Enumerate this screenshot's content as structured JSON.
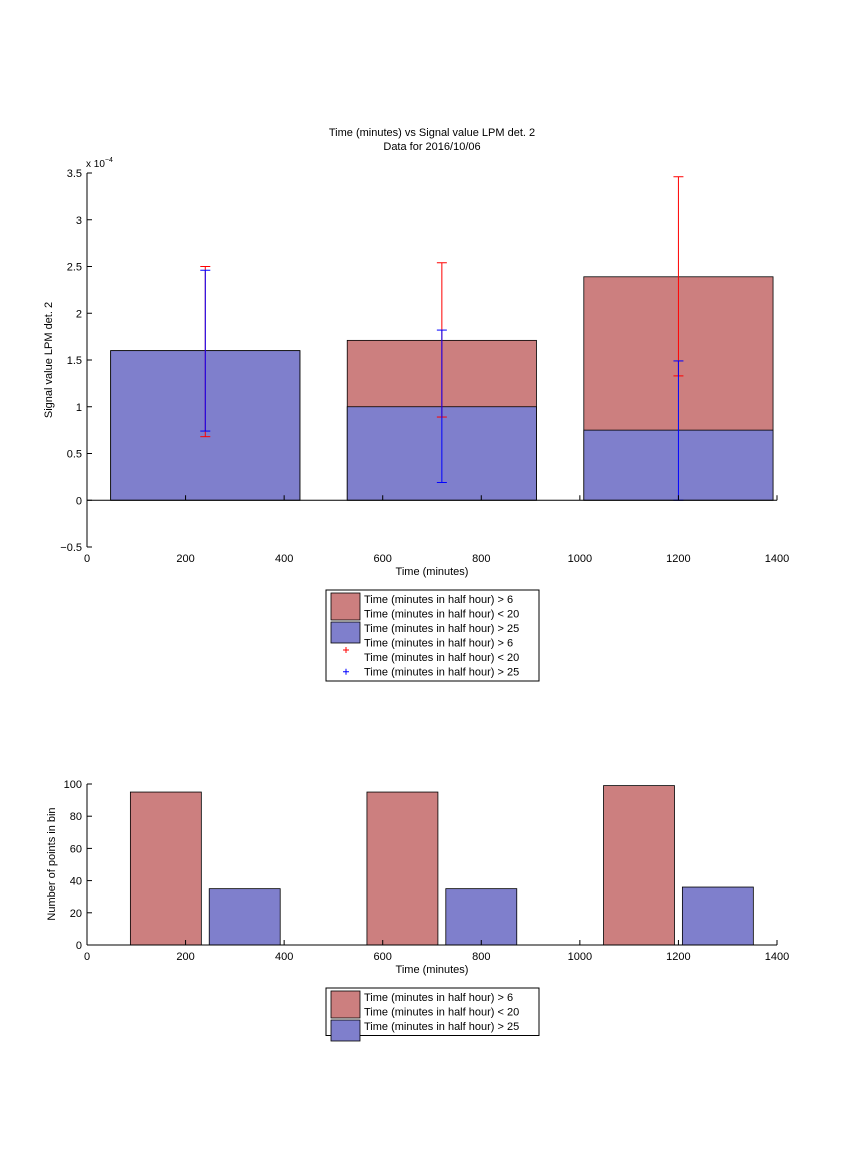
{
  "colors": {
    "red_bar": "#cc7f7f",
    "blue_bar": "#7f7fcc",
    "red_err": "#ff0000",
    "blue_err": "#0000ff",
    "axis": "#000000"
  },
  "chart_data": [
    {
      "type": "bar",
      "title": "Time (minutes) vs Signal value LPM det. 2",
      "subtitle": "Data for 2016/10/06",
      "xlabel": "Time (minutes)",
      "ylabel": "Signal value LPM det. 2",
      "y_exponent_label": "x 10",
      "y_exponent_power": "−4",
      "xlim": [
        0,
        1400
      ],
      "ylim": [
        -0.5,
        3.5
      ],
      "y_scale_factor": 0.0001,
      "xticks": [
        0,
        200,
        400,
        600,
        800,
        1000,
        1200,
        1400
      ],
      "yticks": [
        -0.5,
        0,
        0.5,
        1,
        1.5,
        2,
        2.5,
        3,
        3.5
      ],
      "ytick_labels": [
        "−0.5",
        "0",
        "0.5",
        "1",
        "1.5",
        "2",
        "2.5",
        "3",
        "3.5"
      ],
      "grid": false,
      "legend_position": "below",
      "categories": [
        240,
        720,
        1200
      ],
      "bar_width": 384,
      "series": [
        {
          "name": "Time (minutes in half hour) > 6 Time (minutes in half hour) < 20",
          "color": "#cc7f7f",
          "values": [
            1.6,
            1.71,
            2.39
          ]
        },
        {
          "name": "Time (minutes in half hour) > 25",
          "color": "#7f7fcc",
          "values": [
            1.6,
            1.0,
            0.75
          ]
        }
      ],
      "error_bars": [
        {
          "name": "Time (minutes in half hour) > 6 Time (minutes in half hour) < 20",
          "color": "#ff0000",
          "x": [
            240,
            720,
            1200
          ],
          "lower": [
            0.68,
            0.89,
            1.33
          ],
          "upper": [
            2.5,
            2.54,
            3.46
          ]
        },
        {
          "name": "Time (minutes in half hour) > 25",
          "color": "#0000ff",
          "x": [
            240,
            720,
            1200
          ],
          "lower": [
            0.74,
            0.19,
            0.0
          ],
          "upper": [
            2.46,
            1.82,
            1.49
          ]
        }
      ],
      "legend": [
        {
          "kind": "patch",
          "color": "#cc7f7f",
          "line1": "Time (minutes in half hour) > 6",
          "line2": "Time (minutes in half hour) < 20"
        },
        {
          "kind": "patch",
          "color": "#7f7fcc",
          "line1": "Time (minutes in half hour) > 25"
        },
        {
          "kind": "marker",
          "color": "#ff0000",
          "line1": "Time (minutes in half hour) > 6",
          "line2": "Time (minutes in half hour) < 20"
        },
        {
          "kind": "marker",
          "color": "#0000ff",
          "line1": "Time (minutes in half hour) > 25"
        }
      ]
    },
    {
      "type": "bar",
      "title": "",
      "xlabel": "Time (minutes)",
      "ylabel": "Number of points in bin",
      "xlim": [
        0,
        1400
      ],
      "ylim": [
        0,
        100
      ],
      "xticks": [
        0,
        200,
        400,
        600,
        800,
        1000,
        1200,
        1400
      ],
      "yticks": [
        0,
        20,
        40,
        60,
        80,
        100
      ],
      "ytick_labels": [
        "0",
        "20",
        "40",
        "60",
        "80",
        "100"
      ],
      "grid": false,
      "legend_position": "below",
      "bar_width": 144,
      "series": [
        {
          "name": "Time (minutes in half hour) > 6 Time (minutes in half hour) < 20",
          "color": "#cc7f7f",
          "x": [
            160,
            640,
            1120
          ],
          "values": [
            95,
            95,
            99
          ]
        },
        {
          "name": "Time (minutes in half hour) > 25",
          "color": "#7f7fcc",
          "x": [
            320,
            800,
            1280
          ],
          "values": [
            35,
            35,
            36
          ]
        }
      ],
      "legend": [
        {
          "kind": "patch",
          "color": "#cc7f7f",
          "line1": "Time (minutes in half hour) > 6",
          "line2": "Time (minutes in half hour) < 20"
        },
        {
          "kind": "patch",
          "color": "#7f7fcc",
          "line1": "Time (minutes in half hour) > 25"
        }
      ]
    }
  ]
}
